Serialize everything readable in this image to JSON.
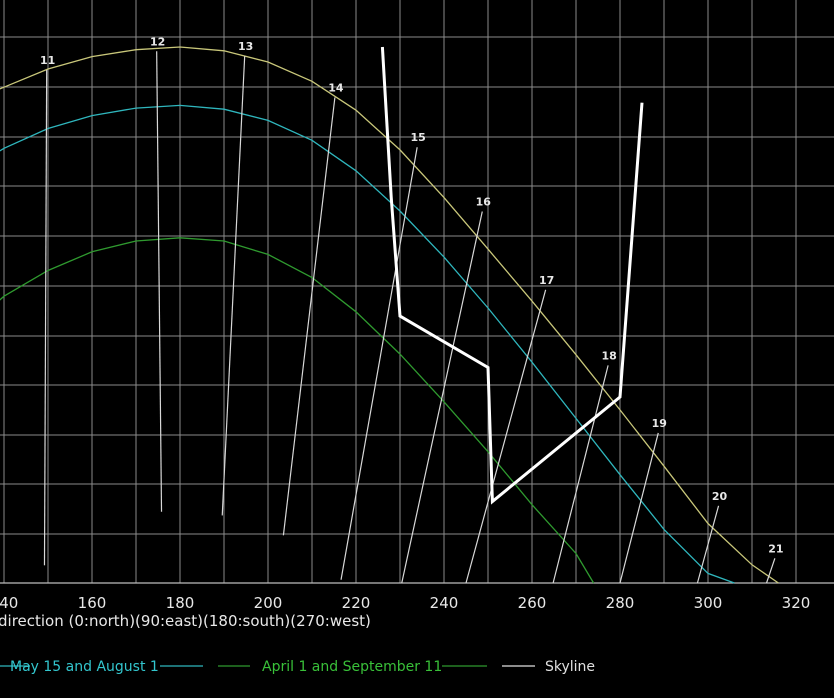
{
  "chart_data": {
    "type": "line",
    "xlabel": "direction (0:north)(90:east)(180:south)(270:west)",
    "xlim": [
      131,
      324
    ],
    "ylim": [
      0,
      100
    ],
    "x_ticks": [
      140,
      160,
      180,
      200,
      220,
      240,
      260,
      280,
      300,
      320
    ],
    "colors": {
      "background": "#000000",
      "grid": "#8a8a8a",
      "summer": "#c9c77a",
      "may_aug": "#2fb6bd",
      "apr_sep": "#2f9a2f",
      "skyline": "#ffffff",
      "hour_lines": "#d8d8d8",
      "legend_may_aug": "#33c6ce",
      "legend_apr_sep": "#39c039",
      "legend_skyline": "#e0e0e0"
    },
    "series": [
      {
        "key": "summer",
        "points": [
          [
            131,
            89.6
          ],
          [
            140,
            92.5
          ],
          [
            150,
            95.9
          ],
          [
            160,
            98.2
          ],
          [
            170,
            99.5
          ],
          [
            180,
            100
          ],
          [
            190,
            99.3
          ],
          [
            200,
            97.2
          ],
          [
            210,
            93.6
          ],
          [
            220,
            88.2
          ],
          [
            230,
            80.8
          ],
          [
            240,
            71.9
          ],
          [
            250,
            62.3
          ],
          [
            260,
            52.6
          ],
          [
            270,
            42.6
          ],
          [
            280,
            32.3
          ],
          [
            290,
            21.8
          ],
          [
            300,
            11.1
          ],
          [
            310,
            3.4
          ],
          [
            316,
            0
          ]
        ]
      },
      {
        "key": "may_aug",
        "name": "May 15 and August 1",
        "points": [
          [
            131,
            76.5
          ],
          [
            140,
            81.1
          ],
          [
            150,
            84.8
          ],
          [
            160,
            87.2
          ],
          [
            170,
            88.6
          ],
          [
            180,
            89.1
          ],
          [
            190,
            88.4
          ],
          [
            200,
            86.3
          ],
          [
            210,
            82.6
          ],
          [
            220,
            76.9
          ],
          [
            230,
            69.4
          ],
          [
            240,
            60.8
          ],
          [
            250,
            51.3
          ],
          [
            260,
            41.2
          ],
          [
            270,
            30.7
          ],
          [
            280,
            20.2
          ],
          [
            290,
            10.0
          ],
          [
            300,
            1.8
          ],
          [
            306,
            0
          ]
        ]
      },
      {
        "key": "apr_sep",
        "name": "April 1 and September 11",
        "points": [
          [
            131,
            47.0
          ],
          [
            140,
            53.5
          ],
          [
            150,
            58.3
          ],
          [
            160,
            61.8
          ],
          [
            170,
            63.8
          ],
          [
            180,
            64.4
          ],
          [
            190,
            63.8
          ],
          [
            200,
            61.3
          ],
          [
            210,
            57.0
          ],
          [
            220,
            50.6
          ],
          [
            230,
            42.7
          ],
          [
            240,
            33.8
          ],
          [
            250,
            24.5
          ],
          [
            260,
            14.6
          ],
          [
            270,
            5.5
          ],
          [
            274,
            0
          ]
        ]
      },
      {
        "key": "skyline",
        "name": "Skyline",
        "points": [
          [
            226,
            100
          ],
          [
            228,
            72
          ],
          [
            230,
            49.8
          ],
          [
            250,
            40.2
          ],
          [
            251,
            15.2
          ],
          [
            280,
            34.7
          ],
          [
            285,
            89.6
          ]
        ]
      }
    ],
    "hour_lines": [
      {
        "label": "11",
        "top": [
          149.7,
          95.7
        ],
        "bottom": [
          149.2,
          3.3
        ]
      },
      {
        "label": "12",
        "top": [
          174.7,
          99.2
        ],
        "bottom": [
          175.8,
          13.3
        ]
      },
      {
        "label": "13",
        "top": [
          194.7,
          98.3
        ],
        "bottom": [
          189.6,
          12.6
        ]
      },
      {
        "label": "14",
        "top": [
          215.2,
          90.6
        ],
        "bottom": [
          203.5,
          8.9
        ]
      },
      {
        "label": "15",
        "top": [
          233.9,
          81.3
        ],
        "bottom": [
          216.6,
          0.6
        ]
      },
      {
        "label": "16",
        "top": [
          248.7,
          69.3
        ],
        "bottom": [
          230.4,
          0
        ]
      },
      {
        "label": "17",
        "top": [
          263.1,
          54.7
        ],
        "bottom": [
          245.0,
          0
        ]
      },
      {
        "label": "18",
        "top": [
          277.3,
          40.6
        ],
        "bottom": [
          264.8,
          0
        ]
      },
      {
        "label": "19",
        "top": [
          288.7,
          28.0
        ],
        "bottom": [
          280.0,
          0
        ]
      },
      {
        "label": "20",
        "top": [
          302.4,
          14.4
        ],
        "bottom": [
          297.6,
          0
        ]
      },
      {
        "label": "21",
        "top": [
          315.2,
          4.6
        ],
        "bottom": [
          313.3,
          0
        ]
      }
    ],
    "legend": {
      "placement": "bottom",
      "entries": [
        {
          "label": "May 15 and August 1",
          "series": "may_aug"
        },
        {
          "label": "April 1 and September 11",
          "series": "apr_sep"
        },
        {
          "label": "Skyline",
          "series": "skyline"
        }
      ]
    }
  }
}
